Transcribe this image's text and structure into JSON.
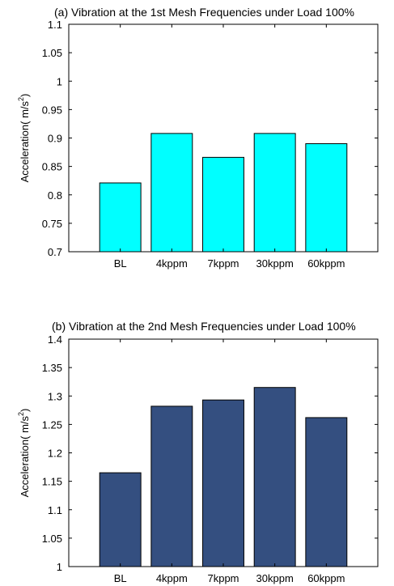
{
  "chart_data": [
    {
      "type": "bar",
      "title": "(a) Vibration at the 1st Mesh Frequencies under Load 100%",
      "ylabel": {
        "prefix": "Acceleration( m/s",
        "sup": "2",
        "suffix": ")"
      },
      "xlabel": "",
      "categories": [
        "BL",
        "4kppm",
        "7kppm",
        "30kppm",
        "60kppm"
      ],
      "values": [
        0.821,
        0.908,
        0.866,
        0.908,
        0.89
      ],
      "ylim": [
        0.7,
        1.1
      ],
      "yticks": [
        "0.7",
        "0.75",
        "0.8",
        "0.85",
        "0.9",
        "0.95",
        "1",
        "1.05",
        "1.1"
      ],
      "bar_color": "#00ffff",
      "grid": false
    },
    {
      "type": "bar",
      "title": "(b) Vibration at the 2nd Mesh Frequencies under Load 100%",
      "ylabel": {
        "prefix": "Acceleration( m/s",
        "sup": "2",
        "suffix": ")"
      },
      "xlabel": "",
      "categories": [
        "BL",
        "4kppm",
        "7kppm",
        "30kppm",
        "60kppm"
      ],
      "values": [
        1.165,
        1.282,
        1.293,
        1.315,
        1.262
      ],
      "ylim": [
        1.0,
        1.4
      ],
      "yticks": [
        "1",
        "1.05",
        "1.1",
        "1.15",
        "1.2",
        "1.25",
        "1.3",
        "1.35",
        "1.4"
      ],
      "bar_color": "#344f80",
      "grid": false
    }
  ]
}
